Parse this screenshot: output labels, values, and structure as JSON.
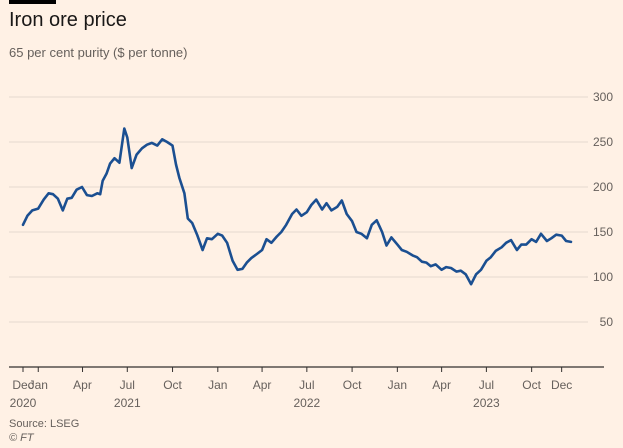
{
  "header": {
    "title": "Iron ore price",
    "subtitle": "65 per cent purity ($ per tonne)"
  },
  "footer": {
    "source": "Source: LSEG",
    "credit": "© FT"
  },
  "colors": {
    "background": "#fff1e5",
    "line": "#1b4f91",
    "grid": "#e6d9ce",
    "axis": "#33302e",
    "text": "#66605c"
  },
  "chart_data": {
    "type": "line",
    "title": "Iron ore price",
    "subtitle": "65 per cent purity ($ per tonne)",
    "xlabel": "",
    "ylabel": "",
    "ylim": [
      0,
      300
    ],
    "xlim": [
      "2020-12-01",
      "2023-12-20"
    ],
    "grid": true,
    "y_axis_side": "right",
    "y_ticks": [
      50,
      100,
      150,
      200,
      250,
      300
    ],
    "x_ticks": [
      {
        "date": "2020-12-01",
        "label": "Dec",
        "year": "2020"
      },
      {
        "date": "2021-01-01",
        "label": "Jan",
        "year": ""
      },
      {
        "date": "2021-04-01",
        "label": "Apr",
        "year": ""
      },
      {
        "date": "2021-07-01",
        "label": "Jul",
        "year": "2021"
      },
      {
        "date": "2021-10-01",
        "label": "Oct",
        "year": ""
      },
      {
        "date": "2022-01-01",
        "label": "Jan",
        "year": ""
      },
      {
        "date": "2022-04-01",
        "label": "Apr",
        "year": ""
      },
      {
        "date": "2022-07-01",
        "label": "Jul",
        "year": "2022"
      },
      {
        "date": "2022-10-01",
        "label": "Oct",
        "year": ""
      },
      {
        "date": "2023-01-01",
        "label": "Jan",
        "year": ""
      },
      {
        "date": "2023-04-01",
        "label": "Apr",
        "year": ""
      },
      {
        "date": "2023-07-01",
        "label": "Jul",
        "year": "2023"
      },
      {
        "date": "2023-10-01",
        "label": "Oct",
        "year": ""
      },
      {
        "date": "2023-12-01",
        "label": "Dec",
        "year": ""
      }
    ],
    "series": [
      {
        "name": "",
        "x": [
          "2020-12-01",
          "2020-12-10",
          "2020-12-20",
          "2021-01-01",
          "2021-01-12",
          "2021-01-22",
          "2021-01-31",
          "2021-02-10",
          "2021-02-20",
          "2021-03-01",
          "2021-03-10",
          "2021-03-20",
          "2021-03-31",
          "2021-04-10",
          "2021-04-20",
          "2021-05-01",
          "2021-05-07",
          "2021-05-12",
          "2021-05-20",
          "2021-05-27",
          "2021-06-05",
          "2021-06-15",
          "2021-06-25",
          "2021-07-01",
          "2021-07-10",
          "2021-07-20",
          "2021-07-31",
          "2021-08-10",
          "2021-08-20",
          "2021-08-31",
          "2021-09-10",
          "2021-09-20",
          "2021-10-01",
          "2021-10-08",
          "2021-10-15",
          "2021-10-25",
          "2021-11-01",
          "2021-11-10",
          "2021-11-20",
          "2021-12-01",
          "2021-12-10",
          "2021-12-20",
          "2022-01-01",
          "2022-01-10",
          "2022-01-20",
          "2022-01-31",
          "2022-02-10",
          "2022-02-20",
          "2022-03-01",
          "2022-03-10",
          "2022-03-20",
          "2022-04-01",
          "2022-04-10",
          "2022-04-20",
          "2022-05-01",
          "2022-05-10",
          "2022-05-20",
          "2022-06-01",
          "2022-06-10",
          "2022-06-20",
          "2022-07-01",
          "2022-07-10",
          "2022-07-20",
          "2022-08-01",
          "2022-08-10",
          "2022-08-20",
          "2022-09-01",
          "2022-09-10",
          "2022-09-20",
          "2022-10-01",
          "2022-10-10",
          "2022-10-20",
          "2022-10-31",
          "2022-11-10",
          "2022-11-20",
          "2022-12-01",
          "2022-12-10",
          "2022-12-20",
          "2023-01-01",
          "2023-01-10",
          "2023-01-20",
          "2023-02-01",
          "2023-02-10",
          "2023-02-20",
          "2023-03-01",
          "2023-03-10",
          "2023-03-20",
          "2023-04-01",
          "2023-04-10",
          "2023-04-20",
          "2023-05-01",
          "2023-05-10",
          "2023-05-20",
          "2023-05-31",
          "2023-06-10",
          "2023-06-20",
          "2023-07-01",
          "2023-07-10",
          "2023-07-20",
          "2023-08-01",
          "2023-08-10",
          "2023-08-20",
          "2023-09-01",
          "2023-09-10",
          "2023-09-20",
          "2023-10-01",
          "2023-10-10",
          "2023-10-20",
          "2023-11-01",
          "2023-11-10",
          "2023-11-20",
          "2023-12-01",
          "2023-12-10",
          "2023-12-20"
        ],
        "y": [
          158,
          168,
          174,
          176,
          186,
          193,
          192,
          187,
          174,
          187,
          188,
          197,
          200,
          191,
          190,
          193,
          192,
          207,
          215,
          226,
          232,
          227,
          265,
          255,
          221,
          236,
          243,
          247,
          249,
          246,
          253,
          250,
          246,
          225,
          210,
          193,
          165,
          160,
          147,
          130,
          143,
          142,
          148,
          146,
          138,
          118,
          108,
          109,
          116,
          121,
          125,
          130,
          142,
          138,
          145,
          150,
          158,
          170,
          175,
          168,
          172,
          180,
          186,
          175,
          182,
          174,
          178,
          185,
          170,
          162,
          150,
          148,
          143,
          158,
          163,
          150,
          135,
          144,
          136,
          130,
          128,
          124,
          122,
          117,
          116,
          112,
          114,
          108,
          111,
          110,
          106,
          107,
          103,
          92,
          103,
          108,
          118,
          122,
          129,
          133,
          138,
          141,
          130,
          136,
          136,
          142,
          139,
          148,
          140,
          143,
          147,
          146,
          140,
          139
        ]
      }
    ]
  }
}
